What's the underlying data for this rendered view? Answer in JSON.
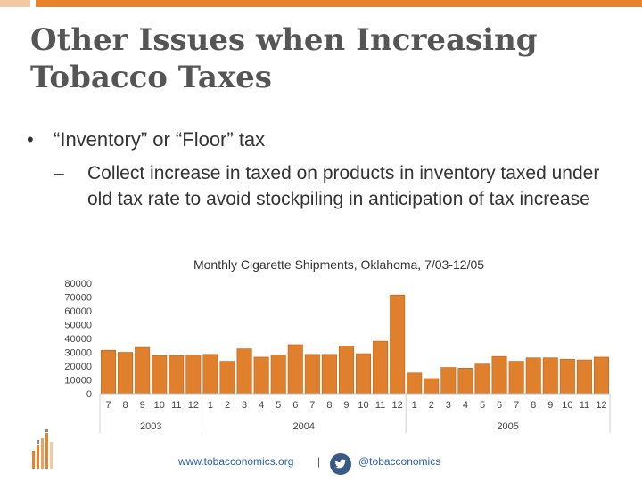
{
  "slide": {
    "title_line1": "Other Issues when Increasing",
    "title_line2": "Tobacco Taxes",
    "bullet_text": "“Inventory” or “Floor” tax",
    "bullet_symbol": "•",
    "sub_dash": "–",
    "sub_bullet_text": "Collect increase in taxed on products in inventory taxed under old tax rate to avoid stockpiling in anticipation of tax increase"
  },
  "footer": {
    "link_text": "www.tobacconomics.org",
    "separator": "|",
    "twitter_handle": "@tobacconomics",
    "twitter_icon": "twitter-bird-icon"
  },
  "colors": {
    "accent": "#e8822b",
    "bar": "#e07f2c",
    "bar_edge": "#b8611b"
  },
  "chart_data": {
    "type": "bar",
    "title": "Monthly Cigarette Shipments, Oklahoma, 7/03-12/05",
    "xlabel": "",
    "ylabel": "",
    "ylim": [
      0,
      80000
    ],
    "yticks": [
      0,
      10000,
      20000,
      30000,
      40000,
      50000,
      60000,
      70000,
      80000
    ],
    "grid": false,
    "categories": [
      "7",
      "8",
      "9",
      "10",
      "11",
      "12",
      "1",
      "2",
      "3",
      "4",
      "5",
      "6",
      "7",
      "8",
      "9",
      "10",
      "11",
      "12",
      "1",
      "2",
      "3",
      "4",
      "5",
      "6",
      "7",
      "8",
      "9",
      "10",
      "11",
      "12"
    ],
    "values": [
      31500,
      30000,
      33500,
      27500,
      27500,
      28000,
      28500,
      23500,
      32500,
      26500,
      28000,
      35500,
      28500,
      28500,
      34500,
      29000,
      38000,
      71500,
      15000,
      11000,
      19000,
      18500,
      21500,
      27000,
      23500,
      26000,
      26000,
      25000,
      24500,
      26500
    ],
    "year_groups": [
      {
        "label": "2003",
        "start": 0,
        "end": 5
      },
      {
        "label": "2004",
        "start": 6,
        "end": 17
      },
      {
        "label": "2005",
        "start": 18,
        "end": 29
      }
    ]
  }
}
